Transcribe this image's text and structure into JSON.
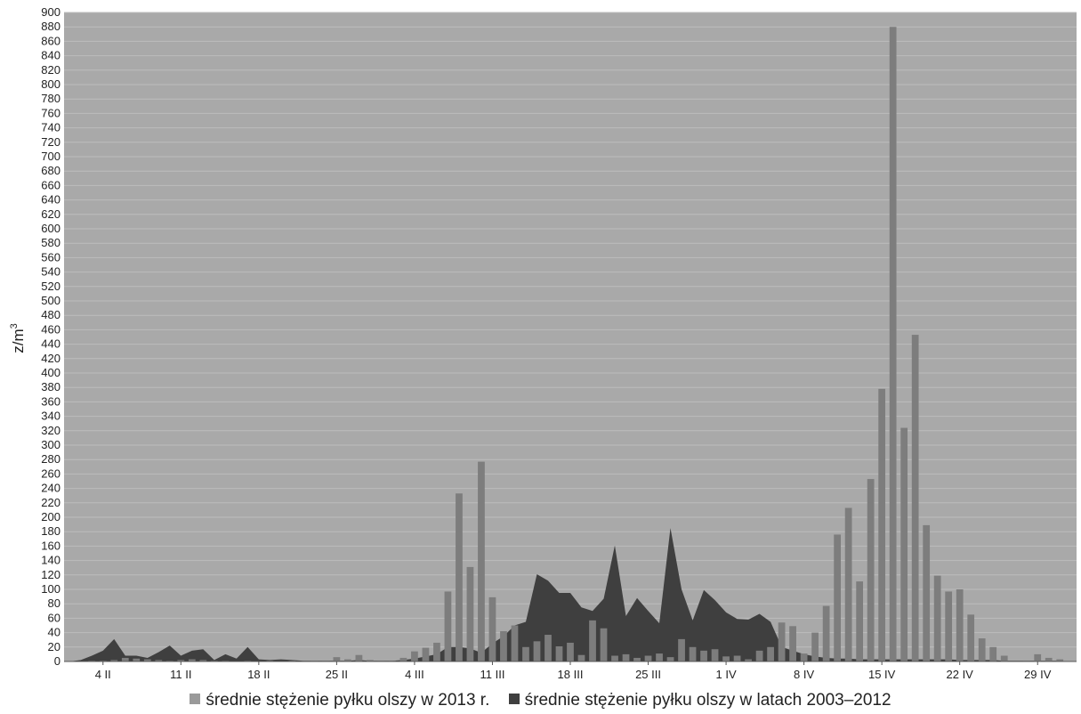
{
  "chart_data": {
    "type": "bar",
    "title": "",
    "xlabel": "",
    "ylabel": "z/m",
    "ylabel_superscript": "3",
    "ylim": [
      0,
      900
    ],
    "y_ticks": [
      0,
      20,
      40,
      60,
      80,
      100,
      120,
      140,
      160,
      180,
      200,
      220,
      240,
      260,
      280,
      300,
      320,
      340,
      360,
      380,
      400,
      420,
      440,
      460,
      480,
      500,
      520,
      540,
      560,
      580,
      600,
      620,
      640,
      660,
      680,
      700,
      720,
      740,
      760,
      780,
      800,
      820,
      840,
      860,
      880,
      900
    ],
    "grid": true,
    "legend_position": "bottom",
    "days": 91,
    "x_tick_labels": [
      {
        "day_index": 3,
        "label": "4 II"
      },
      {
        "day_index": 10,
        "label": "11 II"
      },
      {
        "day_index": 17,
        "label": "18 II"
      },
      {
        "day_index": 24,
        "label": "25 II"
      },
      {
        "day_index": 31,
        "label": "4 III"
      },
      {
        "day_index": 38,
        "label": "11 III"
      },
      {
        "day_index": 45,
        "label": "18 III"
      },
      {
        "day_index": 52,
        "label": "25 III"
      },
      {
        "day_index": 59,
        "label": "1 IV"
      },
      {
        "day_index": 66,
        "label": "8 IV"
      },
      {
        "day_index": 73,
        "label": "15 IV"
      },
      {
        "day_index": 80,
        "label": "22 IV"
      },
      {
        "day_index": 87,
        "label": "29 IV"
      }
    ],
    "series": [
      {
        "name": "średnie stężenie pyłku olszy w 2013 r.",
        "kind": "bar",
        "color": "#7d7d7d",
        "values": [
          0,
          0,
          1,
          1,
          2,
          5,
          4,
          3,
          2,
          1,
          2,
          3,
          2,
          1,
          1,
          0,
          1,
          0,
          1,
          0,
          1,
          0,
          1,
          1,
          6,
          3,
          9,
          2,
          1,
          1,
          5,
          14,
          19,
          26,
          97,
          233,
          131,
          277,
          89,
          42,
          50,
          20,
          28,
          37,
          21,
          26,
          9,
          57,
          46,
          8,
          10,
          5,
          8,
          11,
          6,
          31,
          20,
          15,
          17,
          7,
          8,
          3,
          15,
          20,
          54,
          49,
          11,
          40,
          77,
          176,
          213,
          111,
          253,
          378,
          880,
          324,
          453,
          189,
          119,
          97,
          100,
          65,
          32,
          20,
          8,
          0,
          1,
          10,
          5,
          3,
          0
        ]
      },
      {
        "name": "średnie stężenie pyłku olszy w latach 2003–2012",
        "kind": "area",
        "color": "#3f3f3f",
        "values": [
          0,
          2,
          8,
          15,
          31,
          8,
          8,
          5,
          13,
          22,
          8,
          15,
          17,
          2,
          10,
          4,
          20,
          3,
          2,
          3,
          2,
          1,
          1,
          1,
          1,
          1,
          2,
          1,
          1,
          1,
          2,
          4,
          7,
          10,
          20,
          20,
          18,
          12,
          25,
          35,
          50,
          55,
          121,
          112,
          95,
          95,
          75,
          70,
          87,
          161,
          63,
          88,
          70,
          53,
          185,
          100,
          57,
          99,
          85,
          68,
          59,
          58,
          66,
          55,
          20,
          15,
          10,
          7,
          5,
          4,
          4,
          3,
          3,
          3,
          3,
          3,
          3,
          3,
          3,
          3,
          2,
          2,
          2,
          2,
          1,
          1,
          1,
          1,
          1,
          1,
          0
        ]
      }
    ]
  }
}
